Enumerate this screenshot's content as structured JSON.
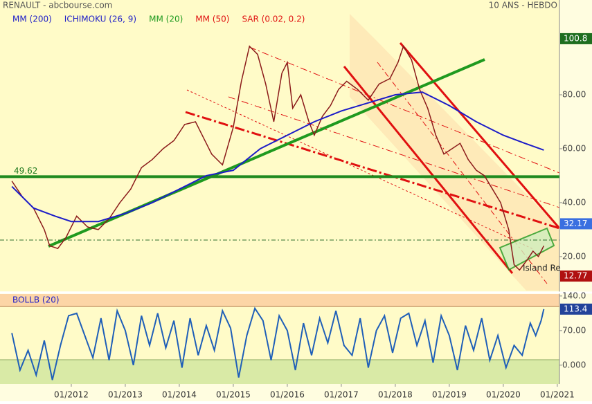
{
  "chart_data": [
    {
      "type": "line",
      "title": "RENAULT - abcbourse.com",
      "subtitle": "10 ANS - HEBDO",
      "price": {
        "color": "#8b1a1a",
        "x": [
          2010.9,
          2011.1,
          2011.3,
          2011.5,
          2011.6,
          2011.75,
          2011.9,
          2012.1,
          2012.3,
          2012.5,
          2012.7,
          2012.9,
          2013.1,
          2013.3,
          2013.5,
          2013.7,
          2013.9,
          2014.1,
          2014.3,
          2014.5,
          2014.6,
          2014.8,
          2015.0,
          2015.15,
          2015.3,
          2015.45,
          2015.6,
          2015.75,
          2015.9,
          2016.0,
          2016.1,
          2016.25,
          2016.4,
          2016.5,
          2016.65,
          2016.8,
          2016.95,
          2017.1,
          2017.3,
          2017.5,
          2017.7,
          2017.9,
          2018.05,
          2018.15,
          2018.3,
          2018.45,
          2018.6,
          2018.75,
          2018.9,
          2019.05,
          2019.2,
          2019.35,
          2019.5,
          2019.65,
          2019.8,
          2019.95,
          2020.1,
          2020.2,
          2020.3,
          2020.45,
          2020.55,
          2020.65,
          2020.75
        ],
        "values": [
          48,
          42,
          38,
          30,
          24,
          23,
          27,
          35,
          31,
          30,
          34,
          40,
          45,
          53,
          56,
          60,
          63,
          69,
          70,
          62,
          58,
          54,
          68,
          85,
          98,
          95,
          84,
          70,
          88,
          92,
          75,
          80,
          70,
          65,
          72,
          76,
          82,
          85,
          82,
          78,
          84,
          86,
          92,
          98,
          93,
          82,
          75,
          65,
          58,
          60,
          62,
          56,
          52,
          50,
          45,
          40,
          30,
          17,
          15,
          19,
          22,
          20,
          24
        ]
      },
      "series": [
        {
          "name": "MM (200)",
          "color": "#1c1cc8",
          "x": [
            2010.9,
            2011.3,
            2011.7,
            2012.0,
            2012.5,
            2013.0,
            2013.5,
            2014.0,
            2014.5,
            2015.0,
            2015.5,
            2016.0,
            2016.5,
            2017.0,
            2017.5,
            2018.0,
            2018.5,
            2019.0,
            2019.5,
            2020.0,
            2020.4,
            2020.75
          ],
          "values": [
            46,
            38,
            35,
            33,
            33,
            36,
            40,
            45,
            50,
            52,
            60,
            65,
            70,
            74,
            77,
            80,
            81,
            76,
            70,
            65,
            62,
            59.5
          ]
        }
      ],
      "indicators": [
        {
          "name": "ICHIMOKU (26, 9)",
          "color": "#1c1cc8"
        },
        {
          "name": "MM (20)",
          "color": "#1f9a1f"
        },
        {
          "name": "MM (50)",
          "color": "#e01010"
        },
        {
          "name": "SAR (0.02, 0.2)",
          "color": "#e01010"
        }
      ],
      "hline": 49.62,
      "price_labels": [
        {
          "value": 100.8,
          "color": "#1f6e1f"
        },
        {
          "value": 32.17,
          "color": "#3a6fe0"
        },
        {
          "value": 12.77,
          "color": "#b01010"
        }
      ],
      "annotation": "Island Re",
      "xlim": [
        2010.68,
        2021.04
      ],
      "ylim": [
        7.4,
        111.3
      ],
      "yticks": [
        {
          "value": 80,
          "label": "80.00"
        },
        {
          "value": 60,
          "label": "60.00"
        },
        {
          "value": 40,
          "label": "40.00"
        },
        {
          "value": 20,
          "label": "20.00"
        }
      ]
    },
    {
      "type": "line",
      "title": "BOLLB (20)",
      "series": [
        {
          "color": "#1f5fb8",
          "x": [
            2010.9,
            2011.05,
            2011.2,
            2011.35,
            2011.5,
            2011.65,
            2011.8,
            2011.95,
            2012.1,
            2012.25,
            2012.4,
            2012.55,
            2012.7,
            2012.85,
            2013.0,
            2013.15,
            2013.3,
            2013.45,
            2013.6,
            2013.75,
            2013.9,
            2014.05,
            2014.2,
            2014.35,
            2014.5,
            2014.65,
            2014.8,
            2014.95,
            2015.1,
            2015.25,
            2015.4,
            2015.55,
            2015.7,
            2015.85,
            2016.0,
            2016.15,
            2016.3,
            2016.45,
            2016.6,
            2016.75,
            2016.9,
            2017.05,
            2017.2,
            2017.35,
            2017.5,
            2017.65,
            2017.8,
            2017.95,
            2018.1,
            2018.25,
            2018.4,
            2018.55,
            2018.7,
            2018.85,
            2019.0,
            2019.15,
            2019.3,
            2019.45,
            2019.6,
            2019.75,
            2019.9,
            2020.05,
            2020.2,
            2020.35,
            2020.5,
            2020.6,
            2020.7,
            2020.75
          ],
          "values": [
            65,
            -10,
            30,
            -20,
            50,
            -30,
            40,
            100,
            105,
            60,
            15,
            95,
            10,
            110,
            70,
            0,
            100,
            40,
            105,
            35,
            90,
            -5,
            95,
            20,
            80,
            30,
            110,
            75,
            -25,
            60,
            115,
            90,
            10,
            100,
            70,
            -10,
            85,
            20,
            95,
            45,
            110,
            40,
            20,
            95,
            -5,
            70,
            100,
            25,
            95,
            105,
            40,
            90,
            5,
            100,
            60,
            -10,
            80,
            30,
            95,
            10,
            60,
            -5,
            40,
            20,
            85,
            60,
            90,
            113.4
          ]
        }
      ],
      "xlim": [
        2010.68,
        2021.04
      ],
      "ylim": [
        -38,
        144
      ],
      "yticks": [
        {
          "value": 140,
          "label": "140.0"
        },
        {
          "value": 70,
          "label": "70.00"
        },
        {
          "value": 0,
          "label": "0.000"
        }
      ],
      "xticks": [
        {
          "value": 2012,
          "label": "01/2012"
        },
        {
          "value": 2013,
          "label": "01/2013"
        },
        {
          "value": 2014,
          "label": "01/2014"
        },
        {
          "value": 2015,
          "label": "01/2015"
        },
        {
          "value": 2016,
          "label": "01/2016"
        },
        {
          "value": 2017,
          "label": "01/2017"
        },
        {
          "value": 2018,
          "label": "01/2018"
        },
        {
          "value": 2019,
          "label": "01/2019"
        },
        {
          "value": 2020,
          "label": "01/2020"
        },
        {
          "value": 2021,
          "label": "01/2021"
        }
      ]
    }
  ]
}
